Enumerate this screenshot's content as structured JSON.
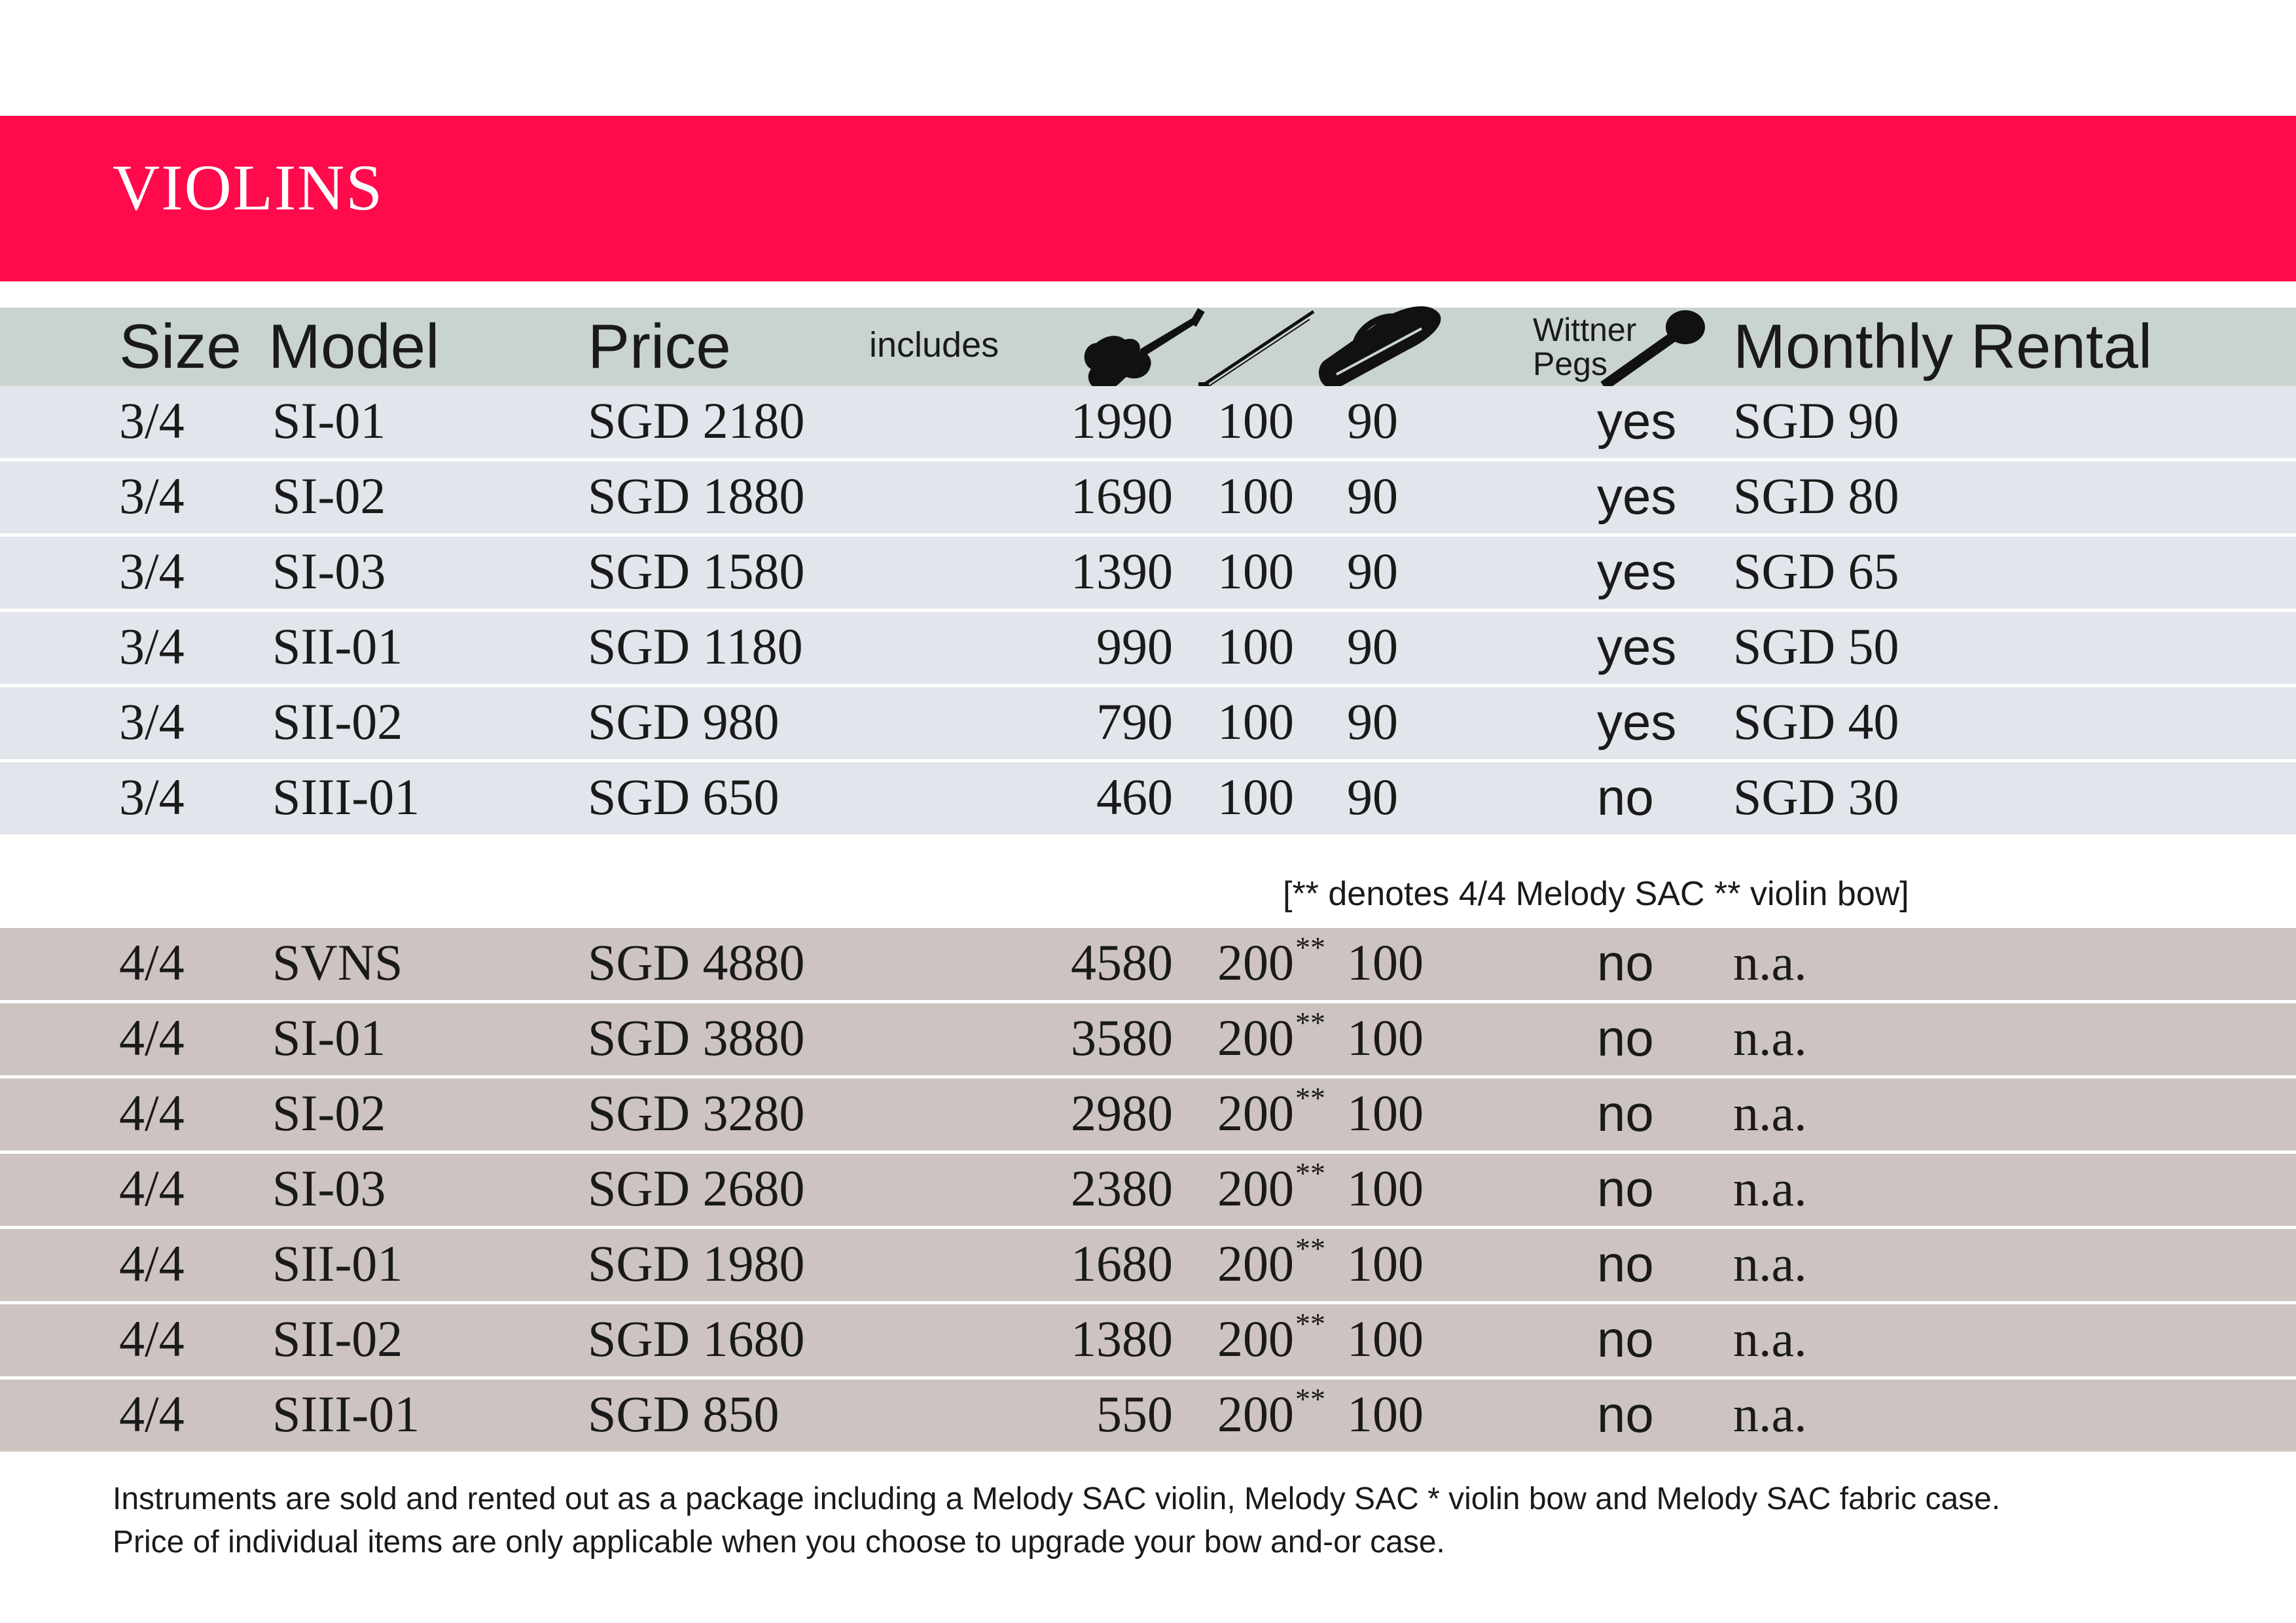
{
  "title": "VIOLINS",
  "columns": {
    "size": "Size",
    "model": "Model",
    "price": "Price",
    "includes": "includes",
    "pegs": "Wittner Pegs",
    "rental": "Monthly Rental"
  },
  "icons": [
    "violin-icon",
    "bow-icon",
    "case-icon",
    "peg-icon"
  ],
  "colors": {
    "banner": "#ff0a4b",
    "header": "#c9d4d0",
    "row_3_4": "#e2e6ec",
    "row_4_4": "#cdc4c2"
  },
  "rows_3_4": [
    {
      "size": "3/4",
      "model": "SI-01",
      "price": "SGD 2180",
      "violin": "1990",
      "bow": "100",
      "case": "90",
      "pegs": "yes",
      "rental": "SGD 90"
    },
    {
      "size": "3/4",
      "model": "SI-02",
      "price": "SGD 1880",
      "violin": "1690",
      "bow": "100",
      "case": "90",
      "pegs": "yes",
      "rental": "SGD 80"
    },
    {
      "size": "3/4",
      "model": "SI-03",
      "price": "SGD 1580",
      "violin": "1390",
      "bow": "100",
      "case": "90",
      "pegs": "yes",
      "rental": "SGD 65"
    },
    {
      "size": "3/4",
      "model": "SII-01",
      "price": "SGD 1180",
      "violin": "990",
      "bow": "100",
      "case": "90",
      "pegs": "yes",
      "rental": "SGD 50"
    },
    {
      "size": "3/4",
      "model": "SII-02",
      "price": "SGD 980",
      "violin": "790",
      "bow": "100",
      "case": "90",
      "pegs": "yes",
      "rental": "SGD 40"
    },
    {
      "size": "3/4",
      "model": "SIII-01",
      "price": "SGD 650",
      "violin": "460",
      "bow": "100",
      "case": "90",
      "pegs": "no",
      "rental": "SGD 30"
    }
  ],
  "bow_note": "[** denotes 4/4 Melody SAC ** violin bow]",
  "rows_4_4": [
    {
      "size": "4/4",
      "model": "SVNS",
      "price": "SGD 4880",
      "violin": "4580",
      "bow": "200",
      "mark": "**",
      "case": "100",
      "pegs": "no",
      "rental": "n.a."
    },
    {
      "size": "4/4",
      "model": "SI-01",
      "price": "SGD 3880",
      "violin": "3580",
      "bow": "200",
      "mark": "**",
      "case": "100",
      "pegs": "no",
      "rental": "n.a."
    },
    {
      "size": "4/4",
      "model": "SI-02",
      "price": "SGD 3280",
      "violin": "2980",
      "bow": "200",
      "mark": "**",
      "case": "100",
      "pegs": "no",
      "rental": "n.a."
    },
    {
      "size": "4/4",
      "model": "SI-03",
      "price": "SGD 2680",
      "violin": "2380",
      "bow": "200",
      "mark": "**",
      "case": "100",
      "pegs": "no",
      "rental": "n.a."
    },
    {
      "size": "4/4",
      "model": "SII-01",
      "price": "SGD 1980",
      "violin": "1680",
      "bow": "200",
      "mark": "**",
      "case": "100",
      "pegs": "no",
      "rental": "n.a."
    },
    {
      "size": "4/4",
      "model": "SII-02",
      "price": "SGD 1680",
      "violin": "1380",
      "bow": "200",
      "mark": "**",
      "case": "100",
      "pegs": "no",
      "rental": "n.a."
    },
    {
      "size": "4/4",
      "model": "SIII-01",
      "price": "SGD 850",
      "violin": "550",
      "bow": "200",
      "mark": "**",
      "case": "100",
      "pegs": "no",
      "rental": "n.a."
    }
  ],
  "footer": {
    "line1": "Instruments are sold and rented out as a package including a Melody SAC violin, Melody SAC * violin bow and Melody SAC fabric case.",
    "line2": "Price of individual items are only applicable when you choose to upgrade your bow and-or case."
  }
}
